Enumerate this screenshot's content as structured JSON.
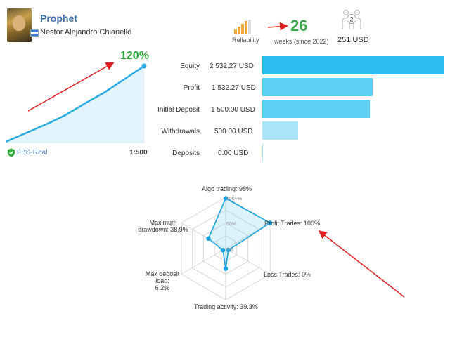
{
  "header": {
    "title": "Prophet",
    "author": "Nestor Alejandro Chiariello",
    "reliability_label": "Reliability",
    "weeks_value": "26",
    "weeks_label": "weeks (since 2022)",
    "subscribers_count": "2",
    "subscription_price": "251 USD"
  },
  "growth": {
    "percent": "120%",
    "account": "FBS-Real",
    "leverage": "1:500",
    "line_color": "#29aae1"
  },
  "stats": [
    {
      "label": "Equity",
      "value": "2 532.27 USD",
      "fraction": 1.0,
      "color": "#29bdf0"
    },
    {
      "label": "Profit",
      "value": "1 532.27 USD",
      "fraction": 0.605,
      "color": "#5cd0f5"
    },
    {
      "label": "Initial Deposit",
      "value": "1 500.00 USD",
      "fraction": 0.592,
      "color": "#5cd0f5"
    },
    {
      "label": "Withdrawals",
      "value": "500.00 USD",
      "fraction": 0.197,
      "color": "#a9e6fb"
    },
    {
      "label": "Deposits",
      "value": "0.00 USD",
      "fraction": 0.0,
      "color": "#a9e6fb"
    }
  ],
  "radar": {
    "ring_labels": [
      "100+%",
      "50%",
      "0%"
    ],
    "axes": [
      {
        "label": "Algo trading: 98%",
        "value": 0.98
      },
      {
        "label": "Profit Trades: 100%",
        "value": 1.0
      },
      {
        "label": "Loss Trades: 0%",
        "value": 0.0
      },
      {
        "label": "Trading activity: 39.3%",
        "value": 0.393
      },
      {
        "label": "Max deposit load: 6.2%",
        "value": 0.062
      },
      {
        "label": "Maximum drawdown: 38.9%",
        "value": 0.389
      }
    ],
    "label_lines": {
      "maxdd_1": "Maximum",
      "maxdd_2": "drawdown: 38.9%",
      "maxdep_1": "Max deposit load:",
      "maxdep_2": "6.2%"
    },
    "accent_color": "#1aa3e0"
  }
}
